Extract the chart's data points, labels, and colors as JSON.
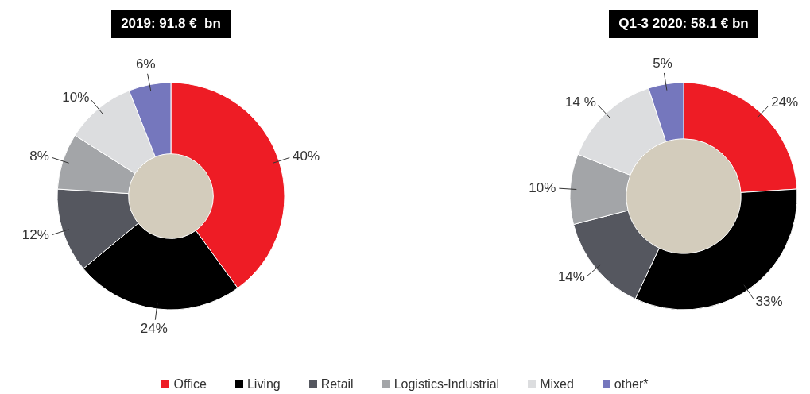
{
  "chart_data": [
    {
      "type": "donut",
      "title": "2019: 91.8 €  bn",
      "categories": [
        "Office",
        "Living",
        "Retail",
        "Logistics-Industrial",
        "Mixed",
        "other*"
      ],
      "values": [
        40,
        24,
        12,
        8,
        10,
        6
      ],
      "value_labels": [
        "40%",
        "24%",
        "12%",
        "8%",
        "10%",
        "6%"
      ],
      "colors": [
        "#ee1c25",
        "#000000",
        "#55575f",
        "#a3a5a8",
        "#dcdddf",
        "#7577bd"
      ],
      "legend": "bottom"
    },
    {
      "type": "donut",
      "title": "Q1-3 2020: 58.1 € bn",
      "categories": [
        null,
        null,
        null,
        null,
        null,
        null
      ],
      "values": [
        24,
        33,
        14,
        10,
        14,
        5
      ],
      "value_labels": [
        "24%",
        "33%",
        "14%",
        "10%",
        "14 %",
        "5%"
      ],
      "colors": [
        "#ee1c25",
        "#000000",
        "#55575f",
        "#a3a5a8",
        "#dcdddf",
        "#7577bd"
      ]
    }
  ]
}
